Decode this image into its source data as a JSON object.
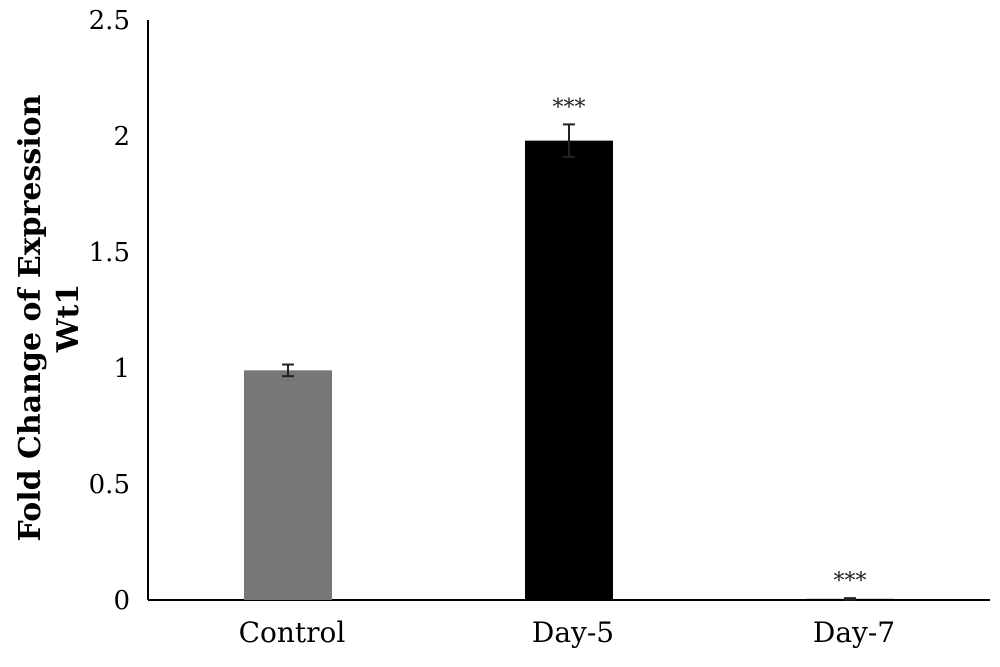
{
  "chart_data": {
    "type": "bar",
    "title": "",
    "xlabel": "",
    "ylabel_lines": [
      "Fold Change of Expression",
      "Wt1"
    ],
    "ylim": [
      0,
      2.5
    ],
    "yticks": [
      "0",
      "0.5",
      "1",
      "1.5",
      "2",
      "2.5"
    ],
    "ytick_values": [
      0,
      0.5,
      1,
      1.5,
      2,
      2.5
    ],
    "categories": [
      "Control",
      "Day-5",
      "Day-7"
    ],
    "values": [
      0.99,
      1.98,
      0.005
    ],
    "errors": [
      0.025,
      0.07,
      0.003
    ],
    "significance": [
      "",
      "***",
      "***"
    ],
    "bar_colors": [
      "#777777",
      "#000000",
      "#000000"
    ],
    "grid": false
  }
}
